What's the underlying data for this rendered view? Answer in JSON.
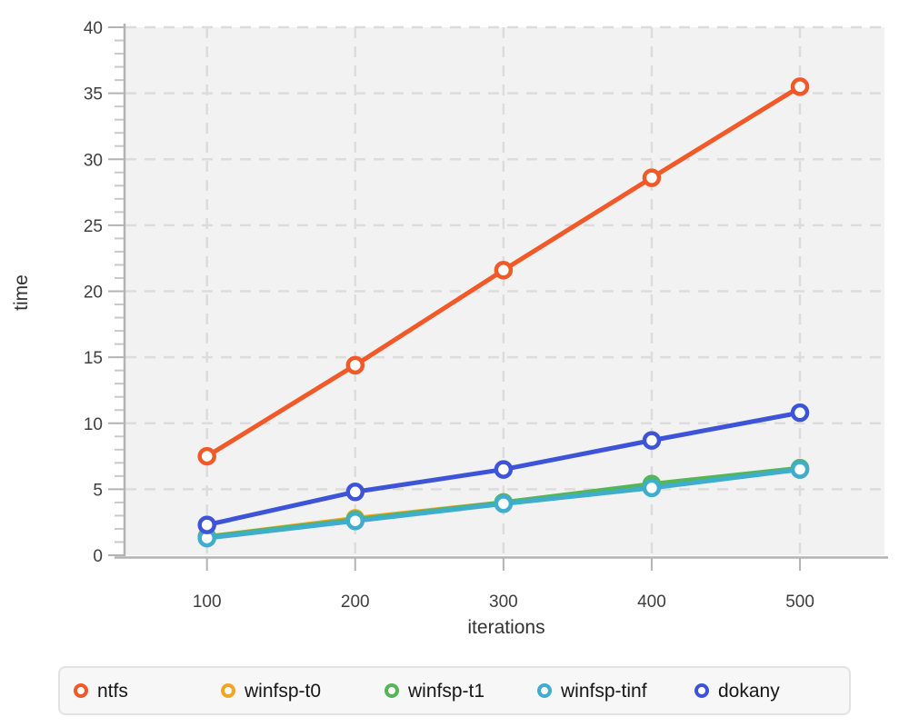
{
  "chart_data": {
    "type": "line",
    "title": "",
    "xlabel": "iterations",
    "ylabel": "time",
    "x": [
      100,
      200,
      300,
      400,
      500
    ],
    "series": [
      {
        "name": "ntfs",
        "color": "#f15928",
        "values": [
          7.5,
          14.4,
          21.6,
          28.6,
          35.5
        ]
      },
      {
        "name": "winfsp-t0",
        "color": "#f5a41f",
        "values": [
          1.4,
          2.8,
          4.0,
          5.3,
          6.5
        ]
      },
      {
        "name": "winfsp-t1",
        "color": "#54b657",
        "values": [
          1.4,
          2.7,
          4.0,
          5.4,
          6.6
        ]
      },
      {
        "name": "winfsp-tinf",
        "color": "#3fadcd",
        "values": [
          1.3,
          2.6,
          3.9,
          5.1,
          6.5
        ]
      },
      {
        "name": "dokany",
        "color": "#3d54d8",
        "values": [
          2.3,
          4.8,
          6.5,
          8.7,
          10.8
        ]
      }
    ],
    "x_ticks": [
      100,
      200,
      300,
      400,
      500
    ],
    "y_ticks": [
      0,
      5,
      10,
      15,
      20,
      25,
      30,
      35,
      40
    ],
    "xlim": [
      45,
      557
    ],
    "ylim": [
      0,
      40
    ],
    "grid": "dashed",
    "minor_y_tick_step": 1,
    "marker": "open-circle",
    "legend_position": "bottom",
    "colors": {
      "plot_background": "#f2f2f2",
      "gridline": "#dcdcdc",
      "axis_line": "#b3b3b3",
      "minor_tick": "#c9c9c9",
      "tick_text": "#3e3e3e",
      "axis_title_text": "#333333",
      "legend_background": "#f7f7f8",
      "legend_border": "#e2e2e2",
      "legend_text": "#161616"
    }
  }
}
